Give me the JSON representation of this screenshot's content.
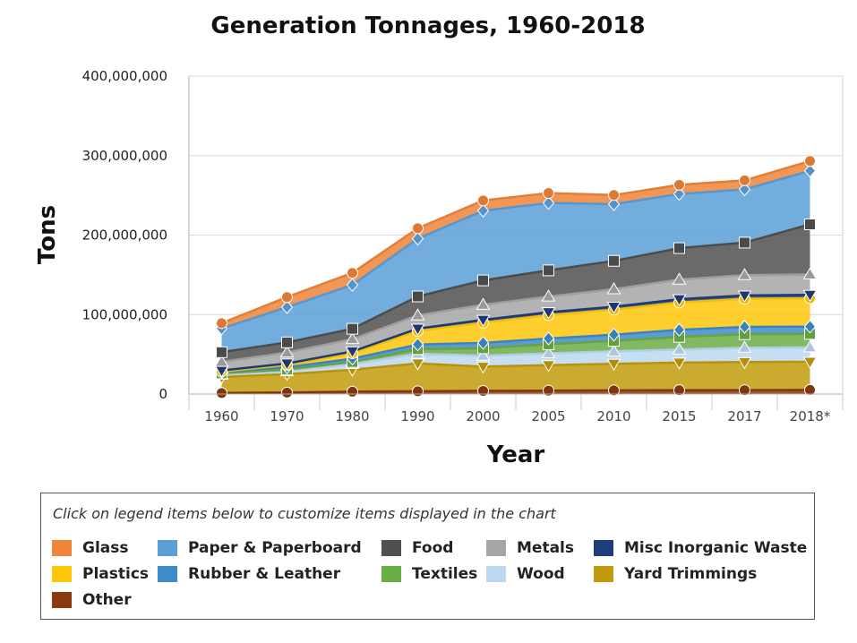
{
  "chart_data": {
    "type": "area",
    "stacked": true,
    "title": "Generation Tonnages, 1960-2018",
    "xlabel": "Year",
    "ylabel": "Tons",
    "categories": [
      "1960",
      "1970",
      "1980",
      "1990",
      "2000",
      "2005",
      "2010",
      "2015",
      "2017",
      "2018*"
    ],
    "ylim": [
      0,
      400000000
    ],
    "yticks": [
      "0",
      "100,000,000",
      "200,000,000",
      "300,000,000",
      "400,000,000"
    ],
    "grid": true,
    "legend_hint": "Click on legend items below to customize items displayed in the chart",
    "legend_placement": "bottom",
    "series": [
      {
        "name": "Other",
        "color": "#8b3a0f",
        "marker": "circle",
        "values": [
          1300000,
          1900000,
          3000000,
          3500000,
          4000000,
          4300000,
          4600000,
          4900000,
          5000000,
          5200000
        ]
      },
      {
        "name": "Yard Trimmings",
        "color": "#c29b0c",
        "marker": "triangle-down",
        "values": [
          20000000,
          23200000,
          27500000,
          35000000,
          30500000,
          32100000,
          33400000,
          34700000,
          35200000,
          35400000
        ]
      },
      {
        "name": "Wood",
        "color": "#bcd8f0",
        "marker": "triangle",
        "values": [
          3000000,
          3700000,
          7300000,
          12200000,
          13600000,
          14800000,
          15700000,
          16300000,
          18100000,
          18100000
        ]
      },
      {
        "name": "Textiles",
        "color": "#6aad45",
        "marker": "square",
        "values": [
          1800000,
          2000000,
          2500000,
          5800000,
          9500000,
          11400000,
          13200000,
          16000000,
          16900000,
          17000000
        ]
      },
      {
        "name": "Rubber & Leather",
        "color": "#3f8bc9",
        "marker": "diamond",
        "values": [
          1800000,
          2900000,
          4200000,
          5800000,
          6700000,
          7300000,
          7800000,
          8900000,
          9300000,
          9200000
        ]
      },
      {
        "name": "Plastics",
        "color": "#ffc70a",
        "marker": "circle",
        "values": [
          400000,
          2900000,
          6800000,
          17100000,
          25600000,
          29400000,
          31400000,
          34500000,
          35400000,
          35700000
        ]
      },
      {
        "name": "Misc Inorganic Waste",
        "color": "#1f3d7a",
        "marker": "triangle-down",
        "values": [
          1300000,
          1800000,
          2300000,
          2900000,
          3500000,
          3700000,
          3800000,
          4000000,
          4100000,
          4200000
        ]
      },
      {
        "name": "Metals",
        "color": "#a6a6a6",
        "marker": "triangle",
        "values": [
          10800000,
          13800000,
          15500000,
          16600000,
          18900000,
          19700000,
          22000000,
          24600000,
          25600000,
          25600000
        ]
      },
      {
        "name": "Food",
        "color": "#505050",
        "marker": "square",
        "values": [
          12200000,
          12800000,
          13000000,
          23900000,
          30700000,
          32900000,
          35700000,
          39700000,
          40900000,
          63100000
        ]
      },
      {
        "name": "Paper & Paperboard",
        "color": "#5b9fd8",
        "marker": "diamond",
        "values": [
          29900000,
          44300000,
          55200000,
          72700000,
          87700000,
          84800000,
          71300000,
          68100000,
          67000000,
          67400000
        ]
      },
      {
        "name": "Glass",
        "color": "#f08438",
        "marker": "circle",
        "values": [
          6700000,
          12700000,
          15100000,
          13100000,
          12800000,
          12500000,
          11500000,
          11500000,
          11400000,
          12300000
        ]
      }
    ],
    "legend_order": [
      "Glass",
      "Paper & Paperboard",
      "Food",
      "Metals",
      "Misc Inorganic Waste",
      "Plastics",
      "Rubber & Leather",
      "Textiles",
      "Wood",
      "Yard Trimmings",
      "Other"
    ]
  }
}
